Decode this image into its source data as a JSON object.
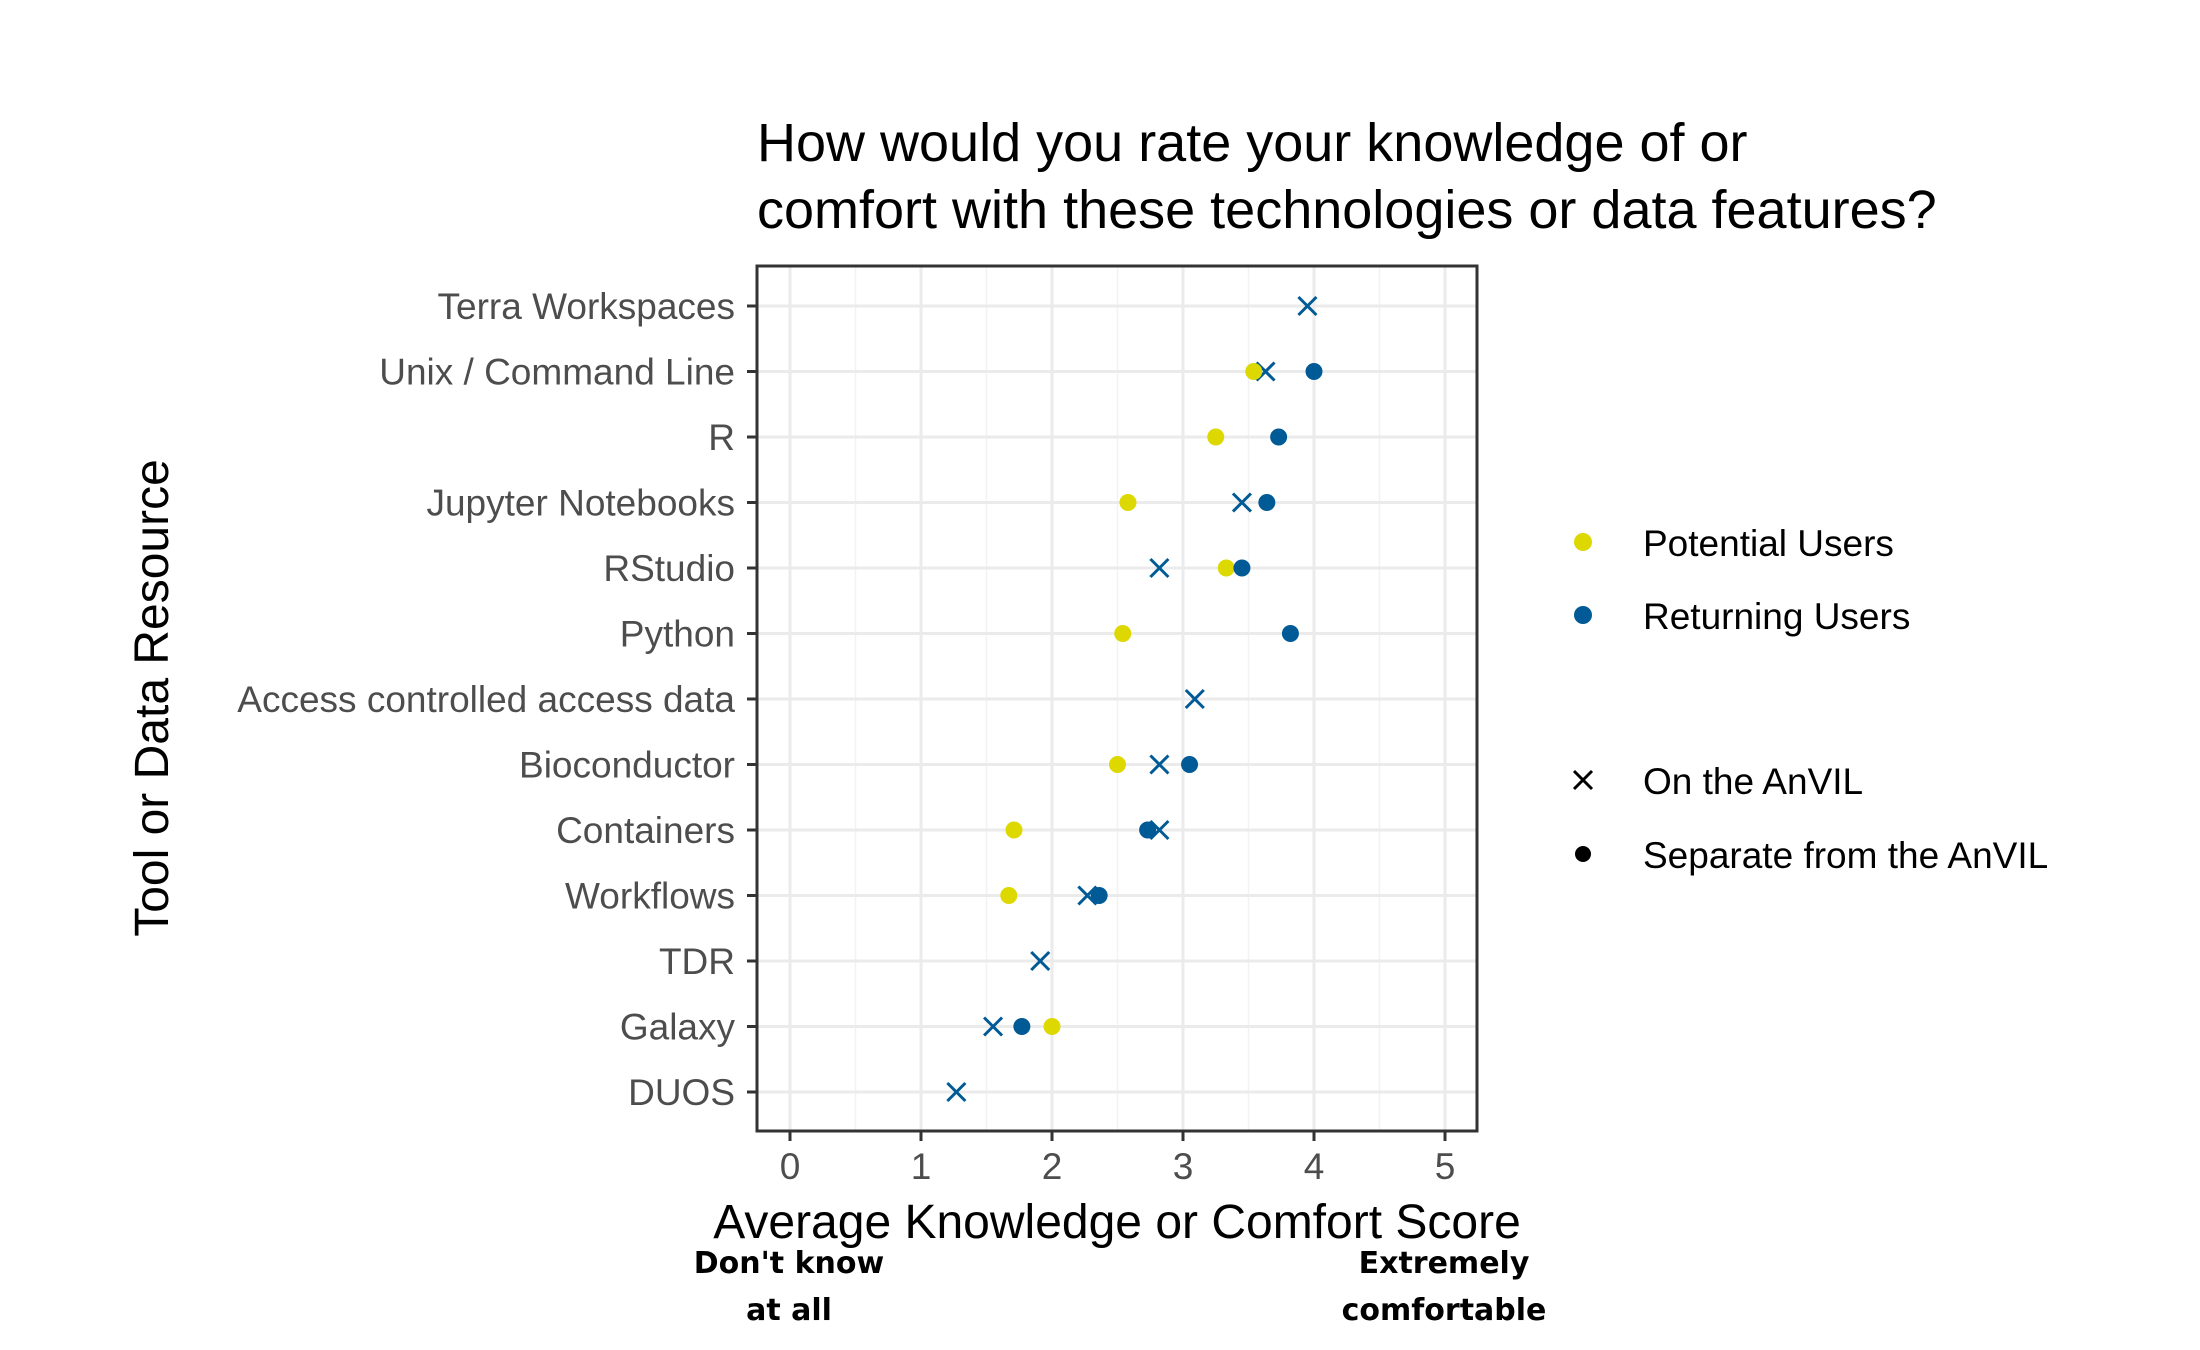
{
  "chart_data": {
    "type": "scatter",
    "title_lines": [
      "How would you rate your knowledge of or",
      "comfort with these technologies or data features?"
    ],
    "xlabel": "Average Knowledge or Comfort Score",
    "ylabel": "Tool or Data Resource",
    "xlim": [
      0,
      5
    ],
    "x_ticks": [
      "0",
      "1",
      "2",
      "3",
      "4",
      "5"
    ],
    "x_anchor_low": [
      "Don't know",
      "at all"
    ],
    "x_anchor_high": [
      "Extremely",
      "comfortable"
    ],
    "grid": true,
    "legend_position": "right",
    "categories": [
      "Terra Workspaces",
      "Unix / Command Line",
      "R",
      "Jupyter Notebooks",
      "RStudio",
      "Python",
      "Access controlled access data",
      "Bioconductor",
      "Containers",
      "Workflows",
      "TDR",
      "Galaxy",
      "DUOS"
    ],
    "legend_color": [
      {
        "name": "Potential Users",
        "color": "#dcd800"
      },
      {
        "name": "Returning Users",
        "color": "#005a96"
      }
    ],
    "legend_shape": [
      {
        "name": "On the AnVIL",
        "shape": "x"
      },
      {
        "name": "Separate from the AnVIL",
        "shape": "dot"
      }
    ],
    "series": [
      {
        "group": "Returning Users",
        "shape": "x",
        "color": "#005a96",
        "points": [
          {
            "category": "Terra Workspaces",
            "value": 3.95
          },
          {
            "category": "Unix / Command Line",
            "value": 3.63
          },
          {
            "category": "Jupyter Notebooks",
            "value": 3.45
          },
          {
            "category": "RStudio",
            "value": 2.82
          },
          {
            "category": "Access controlled access data",
            "value": 3.09
          },
          {
            "category": "Bioconductor",
            "value": 2.82
          },
          {
            "category": "Containers",
            "value": 2.82
          },
          {
            "category": "Workflows",
            "value": 2.27
          },
          {
            "category": "TDR",
            "value": 1.91
          },
          {
            "category": "Galaxy",
            "value": 1.55
          },
          {
            "category": "DUOS",
            "value": 1.27
          }
        ]
      },
      {
        "group": "Potential Users",
        "shape": "dot",
        "color": "#dcd800",
        "points": [
          {
            "category": "Unix / Command Line",
            "value": 3.54
          },
          {
            "category": "R",
            "value": 3.25
          },
          {
            "category": "Jupyter Notebooks",
            "value": 2.58
          },
          {
            "category": "RStudio",
            "value": 3.33
          },
          {
            "category": "Python",
            "value": 2.54
          },
          {
            "category": "Bioconductor",
            "value": 2.5
          },
          {
            "category": "Containers",
            "value": 1.71
          },
          {
            "category": "Workflows",
            "value": 1.67
          },
          {
            "category": "Galaxy",
            "value": 2.0
          }
        ]
      },
      {
        "group": "Returning Users",
        "shape": "dot",
        "color": "#005a96",
        "points": [
          {
            "category": "Unix / Command Line",
            "value": 4.0
          },
          {
            "category": "R",
            "value": 3.73
          },
          {
            "category": "Jupyter Notebooks",
            "value": 3.64
          },
          {
            "category": "RStudio",
            "value": 3.45
          },
          {
            "category": "Python",
            "value": 3.82
          },
          {
            "category": "Bioconductor",
            "value": 3.05
          },
          {
            "category": "Containers",
            "value": 2.73
          },
          {
            "category": "Workflows",
            "value": 2.36
          },
          {
            "category": "Galaxy",
            "value": 1.77
          }
        ]
      }
    ]
  }
}
